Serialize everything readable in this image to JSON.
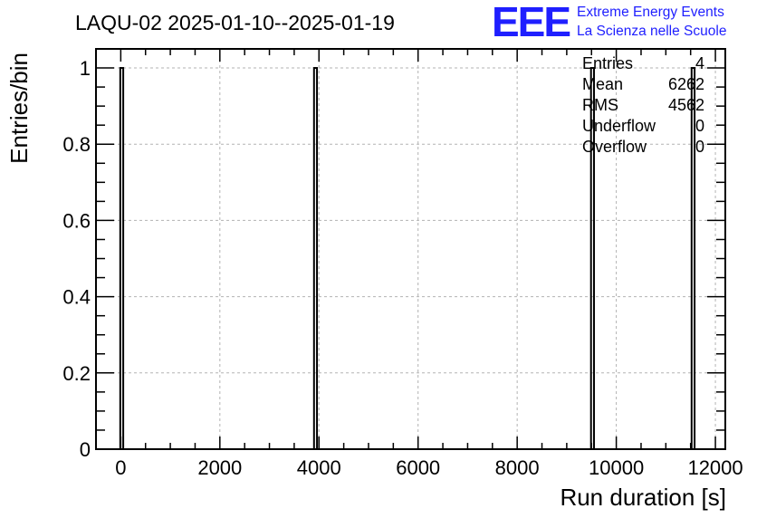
{
  "chart_data": {
    "type": "histogram",
    "title": "LAQU-02 2025-01-10--2025-01-19",
    "xlabel": "Run duration [s]",
    "ylabel": "Entries/bin",
    "xlim": [
      -500,
      12200
    ],
    "ylim": [
      0,
      1.05
    ],
    "x_ticks": [
      0,
      2000,
      4000,
      6000,
      8000,
      10000,
      12000
    ],
    "x_tick_labels": [
      "0",
      "2000",
      "4000",
      "6000",
      "8000",
      "10000",
      "12000"
    ],
    "y_ticks": [
      0,
      0.2,
      0.4,
      0.6,
      0.8,
      1
    ],
    "y_tick_labels": [
      "0",
      "0.2",
      "0.4",
      "0.6",
      "0.8",
      "1"
    ],
    "grid": true,
    "bin_width": 60,
    "bins": [
      {
        "x_low": -10,
        "x_high": 50,
        "count": 1
      },
      {
        "x_low": 3900,
        "x_high": 3960,
        "count": 1
      },
      {
        "x_low": 9490,
        "x_high": 9550,
        "count": 1
      },
      {
        "x_low": 11520,
        "x_high": 11580,
        "count": 1
      }
    ],
    "stats": [
      {
        "label": "Entries",
        "value": "4"
      },
      {
        "label": "Mean",
        "value": "6262"
      },
      {
        "label": "RMS",
        "value": "4562"
      },
      {
        "label": "Underflow",
        "value": "0"
      },
      {
        "label": "Overflow",
        "value": "0"
      }
    ]
  },
  "logo": {
    "mark": "EEE",
    "line1": "Extreme Energy Events",
    "line2": "La Scienza nelle Scuole",
    "color": "#1f1fff"
  }
}
